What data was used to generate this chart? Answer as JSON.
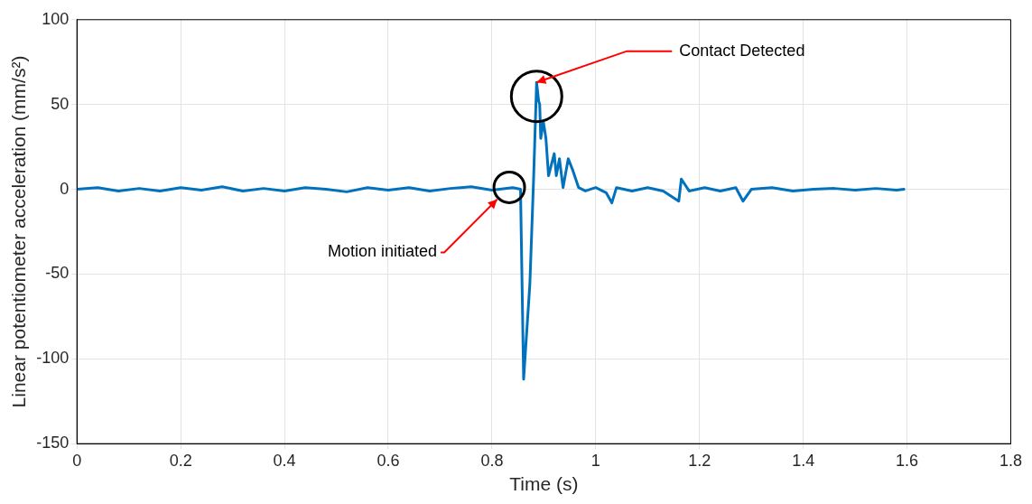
{
  "chart_data": {
    "type": "line",
    "xlabel": "Time (s)",
    "ylabel": "Linear potentiometer acceleration (mm/s²)",
    "x": [
      0,
      0.04,
      0.08,
      0.12,
      0.16,
      0.2,
      0.24,
      0.28,
      0.32,
      0.36,
      0.4,
      0.44,
      0.48,
      0.52,
      0.56,
      0.6,
      0.64,
      0.68,
      0.72,
      0.76,
      0.8,
      0.84,
      0.855,
      0.861,
      0.873,
      0.88,
      0.886,
      0.89,
      0.892,
      0.894,
      0.899,
      0.904,
      0.909,
      0.92,
      0.924,
      0.93,
      0.937,
      0.947,
      0.956,
      0.967,
      0.98,
      1.0,
      1.02,
      1.031,
      1.04,
      1.07,
      1.1,
      1.13,
      1.16,
      1.165,
      1.18,
      1.21,
      1.24,
      1.27,
      1.284,
      1.3,
      1.34,
      1.38,
      1.42,
      1.46,
      1.5,
      1.54,
      1.58,
      1.594
    ],
    "series": [
      {
        "color": "#0072bd",
        "values": [
          0,
          1,
          -1,
          0.5,
          -1,
          1,
          -0.5,
          1.5,
          -1,
          0.5,
          -1,
          1,
          0,
          -1.5,
          1,
          -0.5,
          1,
          -1,
          0.5,
          1.5,
          -0.5,
          1,
          0,
          -112,
          -56,
          4,
          63,
          52,
          50,
          30,
          40,
          30,
          8,
          21,
          8,
          18,
          1,
          18,
          11,
          1,
          -1,
          1,
          -2,
          -8,
          1,
          -1,
          1,
          -1,
          -7,
          6,
          -1,
          1,
          -1,
          1,
          -7,
          0,
          1,
          -1,
          0,
          0.5,
          -0.5,
          0.5,
          -0.5,
          0
        ]
      }
    ],
    "xlim": [
      0,
      1.8
    ],
    "xticks": [
      0,
      0.2,
      0.4,
      0.6,
      0.8,
      1,
      1.2,
      1.4,
      1.6,
      1.8
    ],
    "ylim": [
      -150,
      100
    ],
    "yticks": [
      -150,
      -100,
      -50,
      0,
      50,
      100
    ],
    "grid": true,
    "legend": false,
    "marker": "none",
    "line_style": "solid",
    "annotations": [
      {
        "text": "Motion initiated",
        "x": 0.81,
        "y": -6
      },
      {
        "text": "Contact Detected",
        "x": 0.886,
        "y": 63
      }
    ]
  }
}
